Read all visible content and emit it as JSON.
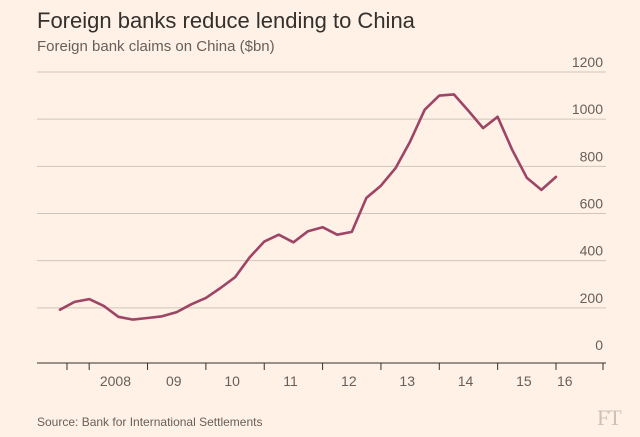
{
  "title": "Foreign banks reduce lending to China",
  "subtitle": "Foreign bank claims on China ($bn)",
  "source": "Source: Bank for International Settlements",
  "logo": "FT",
  "colors": {
    "background": "#fff1e5",
    "line": "#9e4466",
    "grid": "#cec6b9",
    "axis": "#33302e",
    "text": "#66605c"
  },
  "chart_data": {
    "type": "line",
    "title": "Foreign banks reduce lending to China",
    "subtitle": "Foreign bank claims on China ($bn)",
    "ylim": [
      0,
      1200
    ],
    "yticks": [
      0,
      200,
      400,
      600,
      800,
      1000,
      1200
    ],
    "xtick_labels": [
      "2008",
      "09",
      "10",
      "11",
      "12",
      "13",
      "14",
      "15",
      "16"
    ],
    "grid": "horizontal",
    "x_year_range": [
      2007.5,
      2016.5
    ],
    "x": [
      2007.5,
      2007.75,
      2008.0,
      2008.25,
      2008.5,
      2008.75,
      2009.0,
      2009.25,
      2009.5,
      2009.75,
      2010.0,
      2010.25,
      2010.5,
      2010.75,
      2011.0,
      2011.25,
      2011.5,
      2011.75,
      2012.0,
      2012.25,
      2012.5,
      2012.75,
      2013.0,
      2013.25,
      2013.5,
      2013.75,
      2014.0,
      2014.25,
      2014.5,
      2014.75,
      2015.0,
      2015.25,
      2015.5,
      2015.75,
      2016.0
    ],
    "series": [
      {
        "values": [
          192,
          225,
          237,
          208,
          162,
          150,
          157,
          164,
          182,
          215,
          242,
          284,
          330,
          414,
          481,
          510,
          478,
          525,
          542,
          510,
          522,
          666,
          718,
          792,
          905,
          1040,
          1100,
          1105,
          1035,
          962,
          1010,
          870,
          752,
          700,
          755
        ]
      }
    ]
  }
}
